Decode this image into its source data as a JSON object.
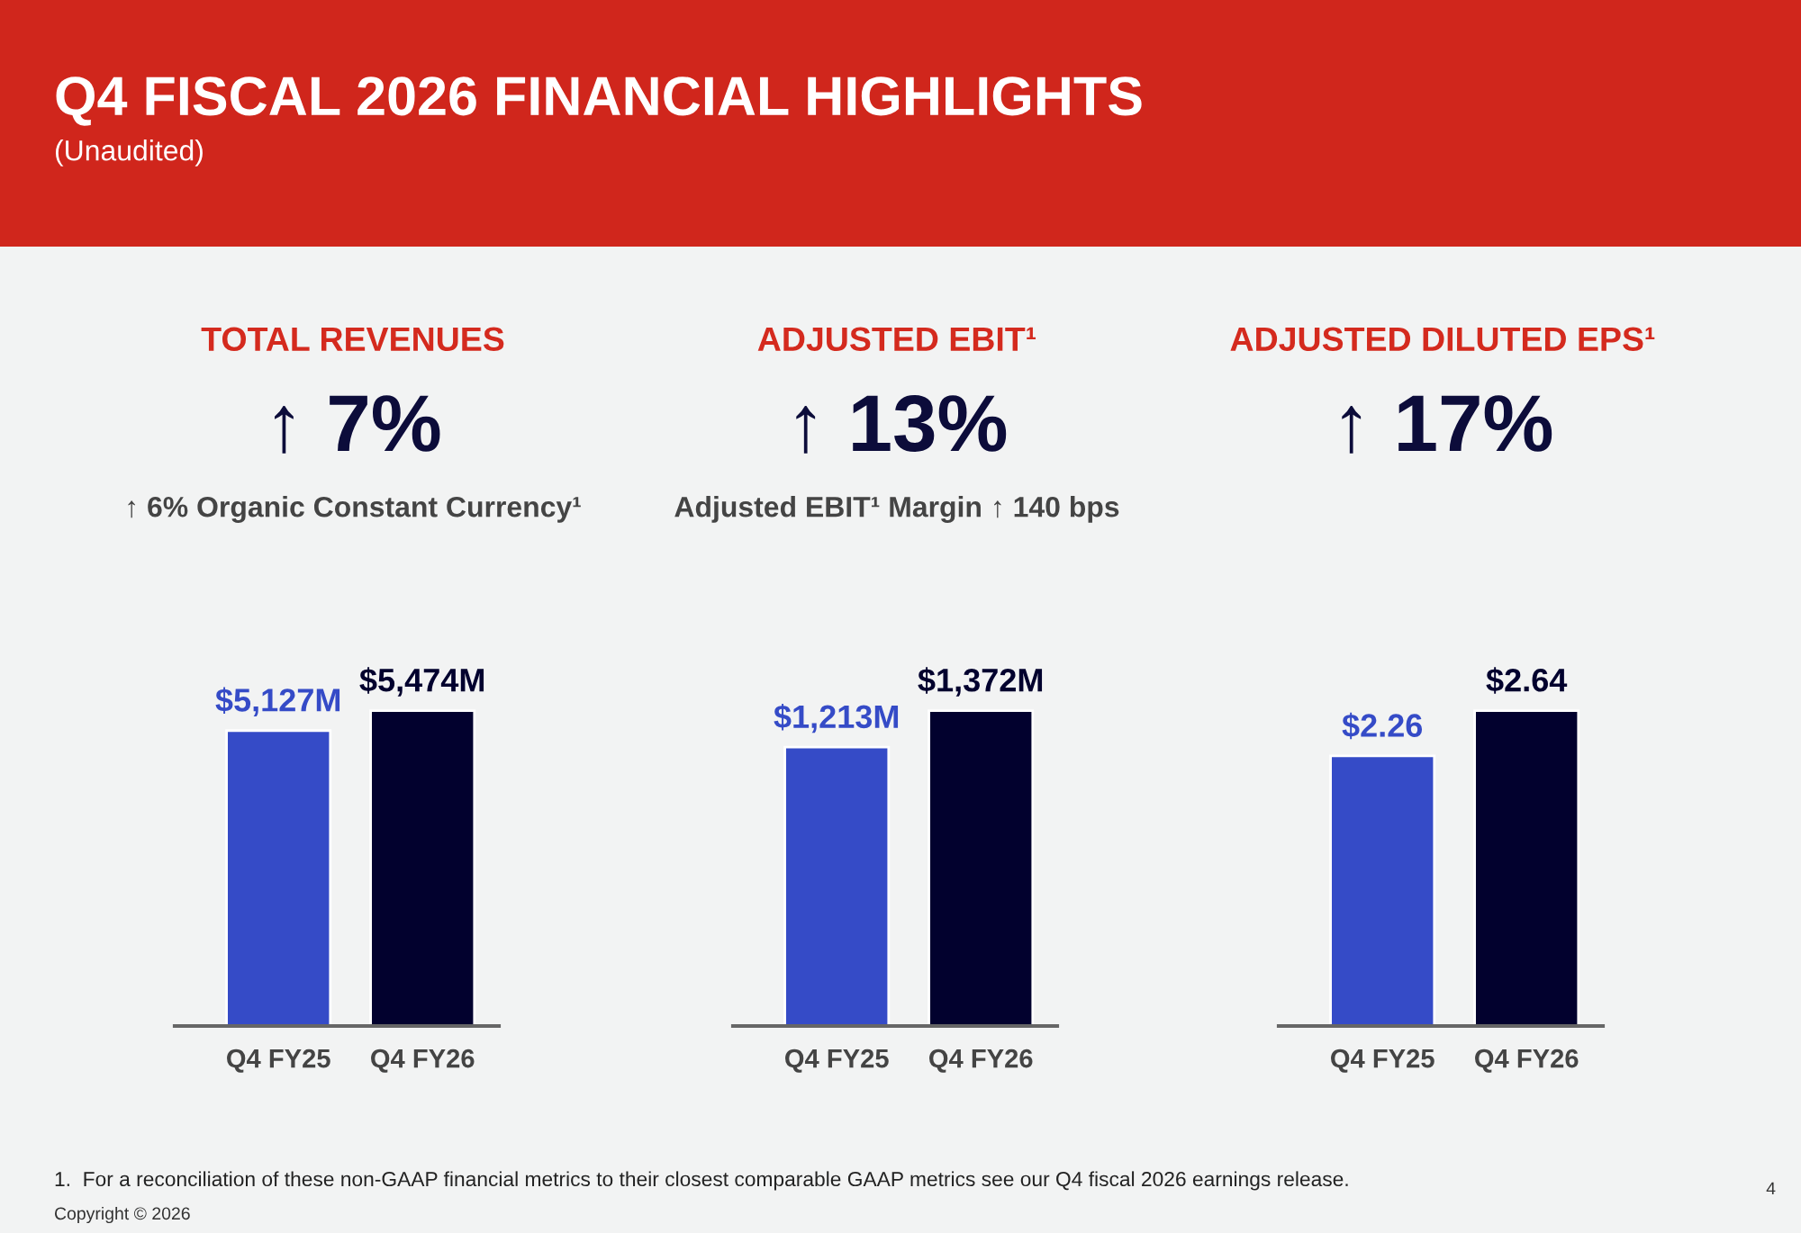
{
  "chart_data": [
    {
      "type": "other",
      "title": "Q4 FISCAL 2026 FINANCIAL HIGHLIGHTS",
      "subtitle": "(Unaudited)",
      "annotations": [
        "1.  For a reconciliation of these non-GAAP financial metrics to their closest comparable GAAP metrics see our Q4 fiscal 2026 earnings release.",
        "Copyright © 2026",
        "4"
      ]
    },
    {
      "type": "bar",
      "title": "TOTAL REVENUES",
      "subtitle": "↑ 7%",
      "annotations": [
        "↑ 6% Organic Constant Currency¹"
      ],
      "categories": [
        "Q4 FY25",
        "Q4 FY26"
      ],
      "values": [
        5127,
        5474
      ],
      "colors": [
        "#354bc7",
        "#02012e"
      ],
      "value_labels": [
        "$5,127M",
        "$5,474M"
      ],
      "tick_labels": "x"
    },
    {
      "type": "bar",
      "title": "ADJUSTED EBIT¹",
      "subtitle": "↑ 13%",
      "annotations": [
        "Adjusted EBIT¹ Margin ↑ 140 bps"
      ],
      "categories": [
        "Q4 FY25",
        "Q4 FY26"
      ],
      "values": [
        1213,
        1372
      ],
      "colors": [
        "#354bc7",
        "#02012e"
      ],
      "value_labels": [
        "$1,213M",
        "$1,372M"
      ],
      "tick_labels": "x"
    },
    {
      "type": "bar",
      "title": "ADJUSTED DILUTED EPS¹",
      "subtitle": "↑ 17%",
      "categories": [
        "Q4 FY25",
        "Q4 FY26"
      ],
      "values": [
        2.26,
        2.64
      ],
      "colors": [
        "#354bc7",
        "#02012e"
      ],
      "value_labels": [
        "$2.26",
        "$2.64"
      ],
      "tick_labels": "x"
    }
  ]
}
